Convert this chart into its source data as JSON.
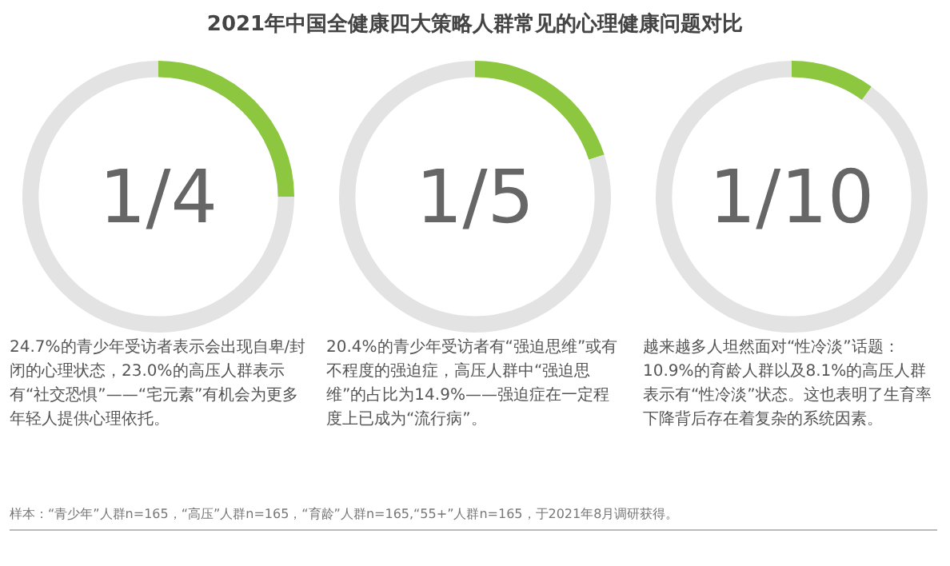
{
  "chart_data": [
    {
      "type": "donut",
      "title": "2021年中国全健康四大策略人群常见的心理健康问题对比",
      "categories": [
        null,
        null
      ],
      "values": [
        25,
        75
      ],
      "colors": [
        "#8dc63f",
        "#e3e3e3"
      ],
      "legend": false,
      "annotations": [
        "1/4",
        "24.7%的青少年受访者表示会出现自卑/封闭的心理状态，23.0%的高压人群表示有“社交恐惧”——“宅元素”有机会为更多年轻人提供心理依托。"
      ]
    },
    {
      "type": "donut",
      "categories": [
        null,
        null
      ],
      "values": [
        20,
        80
      ],
      "colors": [
        "#8dc63f",
        "#e3e3e3"
      ],
      "legend": false,
      "annotations": [
        "1/5",
        "20.4%的青少年受访者有“强迫思维”或有不程度的强迫症，高压人群中“强迫思维”的占比为14.9%——强迫症在一定程度上已成为“流行病”。"
      ]
    },
    {
      "type": "donut",
      "categories": [
        null,
        null
      ],
      "values": [
        10,
        90
      ],
      "colors": [
        "#8dc63f",
        "#e3e3e3"
      ],
      "legend": false,
      "annotations": [
        "1/10",
        "越来越多人坦然面对“性冷淡”话题：10.9%的育龄人群以及8.1%的高压人群表示有“性冷淡”状态。这也表明了生育率下降背后存在着复杂的系统因素。",
        "样本：“青少年”人群n=165，“高压”人群n=165，“育龄”人群n=165,“55+”人群n=165，于2021年8月调研获得。"
      ]
    }
  ]
}
